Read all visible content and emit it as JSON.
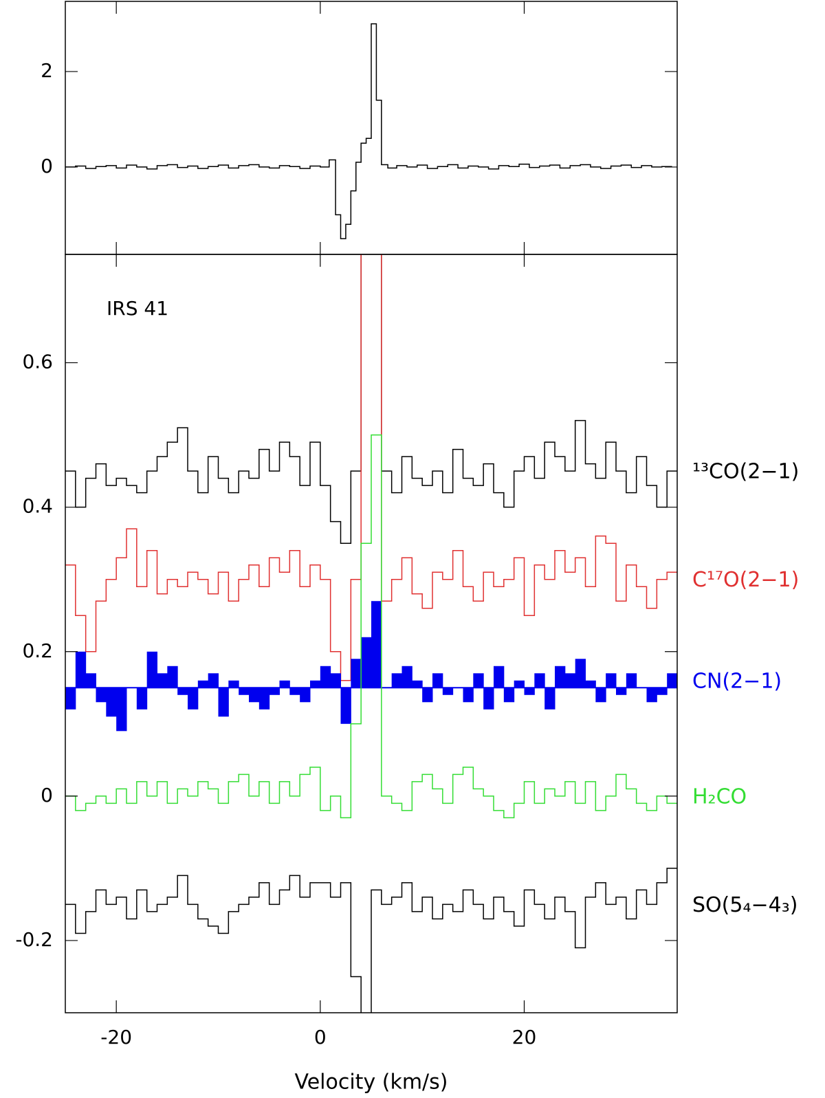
{
  "chart_data": [
    {
      "type": "line",
      "xlim": [
        -25,
        35
      ],
      "ylim": [
        -1.83,
        3.47
      ],
      "xticks": [
        -20,
        0,
        20
      ],
      "yticks": [
        0,
        2
      ],
      "show_xtick_labels": false,
      "x": [
        -24.5,
        -23.5,
        -22.5,
        -21.5,
        -20.5,
        -19.5,
        -18.5,
        -17.5,
        -16.5,
        -15.5,
        -14.5,
        -13.5,
        -12.5,
        -11.5,
        -10.5,
        -9.5,
        -8.5,
        -7.5,
        -6.5,
        -5.5,
        -4.5,
        -3.5,
        -2.5,
        -1.5,
        -0.5,
        0.5,
        1.25,
        1.75,
        2.25,
        2.75,
        3.25,
        3.75,
        4.25,
        4.75,
        5.25,
        5.75,
        6.25,
        7,
        8,
        9,
        10,
        11,
        12,
        13,
        14,
        15,
        16,
        17,
        18,
        19,
        20,
        21,
        22,
        23,
        24,
        25,
        26,
        27,
        28,
        29,
        30,
        31,
        32,
        33,
        34
      ],
      "series": [
        {
          "color": "#000000",
          "values": [
            0.0,
            0.02,
            -0.03,
            0.01,
            0.03,
            -0.02,
            0.04,
            0.0,
            -0.04,
            0.03,
            0.05,
            -0.01,
            0.02,
            -0.03,
            0.01,
            0.04,
            -0.02,
            0.03,
            0.05,
            0.0,
            -0.02,
            0.03,
            0.01,
            -0.03,
            0.02,
            0.0,
            0.15,
            -1.0,
            -1.5,
            -1.2,
            -0.5,
            0.1,
            0.5,
            0.6,
            3.0,
            1.4,
            0.05,
            -0.02,
            0.03,
            0.0,
            0.04,
            -0.03,
            0.01,
            0.05,
            -0.02,
            0.02,
            0.0,
            -0.04,
            0.03,
            0.01,
            0.06,
            -0.01,
            0.02,
            0.04,
            -0.02,
            0.03,
            0.05,
            0.0,
            -0.03,
            0.02,
            0.04,
            -0.01,
            0.03,
            0.0,
            0.01
          ]
        }
      ]
    },
    {
      "type": "line",
      "xlim": [
        -25,
        35
      ],
      "ylim": [
        -0.3,
        0.75
      ],
      "xticks": [
        -20,
        0,
        20
      ],
      "yticks": [
        -0.2,
        0,
        0.2,
        0.4,
        0.6
      ],
      "show_xtick_labels": true,
      "xlabel": "Velocity (km/s)",
      "annotation": "IRS 41",
      "x": [
        -24.5,
        -23.5,
        -22.5,
        -21.5,
        -20.5,
        -19.5,
        -18.5,
        -17.5,
        -16.5,
        -15.5,
        -14.5,
        -13.5,
        -12.5,
        -11.5,
        -10.5,
        -9.5,
        -8.5,
        -7.5,
        -6.5,
        -5.5,
        -4.5,
        -3.5,
        -2.5,
        -1.5,
        -0.5,
        0.5,
        1.5,
        2.5,
        3.5,
        4.5,
        5.5,
        6.5,
        7.5,
        8.5,
        9.5,
        10.5,
        11.5,
        12.5,
        13.5,
        14.5,
        15.5,
        16.5,
        17.5,
        18.5,
        19.5,
        20.5,
        21.5,
        22.5,
        23.5,
        24.5,
        25.5,
        26.5,
        27.5,
        28.5,
        29.5,
        30.5,
        31.5,
        32.5,
        33.5,
        34.5
      ],
      "series": [
        {
          "name": "¹³CO(2−1)",
          "color": "#000000",
          "values": [
            0.45,
            0.4,
            0.44,
            0.46,
            0.43,
            0.44,
            0.43,
            0.42,
            0.45,
            0.47,
            0.49,
            0.51,
            0.45,
            0.42,
            0.47,
            0.44,
            0.42,
            0.45,
            0.44,
            0.48,
            0.45,
            0.49,
            0.47,
            0.43,
            0.49,
            0.43,
            0.38,
            0.35,
            0.45,
            0.95,
            1.2,
            0.45,
            0.42,
            0.47,
            0.44,
            0.43,
            0.45,
            0.42,
            0.48,
            0.44,
            0.43,
            0.46,
            0.42,
            0.4,
            0.45,
            0.47,
            0.44,
            0.49,
            0.47,
            0.45,
            0.52,
            0.46,
            0.44,
            0.49,
            0.45,
            0.42,
            0.47,
            0.43,
            0.4,
            0.45
          ]
        },
        {
          "name": "C¹⁷O(2−1)",
          "color": "#e03030",
          "values": [
            0.32,
            0.25,
            0.2,
            0.27,
            0.3,
            0.33,
            0.37,
            0.29,
            0.34,
            0.28,
            0.3,
            0.29,
            0.31,
            0.3,
            0.28,
            0.31,
            0.27,
            0.3,
            0.32,
            0.29,
            0.33,
            0.31,
            0.34,
            0.29,
            0.32,
            0.3,
            0.2,
            0.16,
            0.3,
            1.0,
            0.9,
            0.27,
            0.3,
            0.33,
            0.28,
            0.26,
            0.31,
            0.3,
            0.34,
            0.29,
            0.27,
            0.31,
            0.29,
            0.3,
            0.33,
            0.25,
            0.32,
            0.3,
            0.34,
            0.31,
            0.33,
            0.29,
            0.36,
            0.35,
            0.27,
            0.32,
            0.29,
            0.26,
            0.3,
            0.31
          ]
        },
        {
          "name": "CN(2−1)",
          "color": "#0000ee",
          "fill": true,
          "baseline": 0.15,
          "values": [
            0.12,
            0.2,
            0.17,
            0.13,
            0.11,
            0.09,
            0.15,
            0.12,
            0.2,
            0.17,
            0.18,
            0.14,
            0.12,
            0.16,
            0.17,
            0.11,
            0.16,
            0.14,
            0.13,
            0.12,
            0.14,
            0.16,
            0.14,
            0.13,
            0.16,
            0.18,
            0.17,
            0.1,
            0.19,
            0.22,
            0.27,
            0.15,
            0.17,
            0.18,
            0.16,
            0.13,
            0.17,
            0.14,
            0.15,
            0.13,
            0.17,
            0.12,
            0.18,
            0.13,
            0.16,
            0.14,
            0.17,
            0.12,
            0.18,
            0.17,
            0.19,
            0.16,
            0.13,
            0.17,
            0.14,
            0.17,
            0.15,
            0.13,
            0.14,
            0.17
          ]
        },
        {
          "name": "H₂CO",
          "color": "#33dd33",
          "values": [
            0.0,
            -0.02,
            -0.01,
            0.0,
            -0.01,
            0.01,
            -0.01,
            0.02,
            0.0,
            0.02,
            -0.01,
            0.01,
            0.0,
            0.02,
            0.01,
            -0.01,
            0.02,
            0.03,
            0.0,
            0.02,
            -0.01,
            0.02,
            0.0,
            0.03,
            0.04,
            -0.02,
            0.0,
            -0.03,
            0.1,
            0.35,
            0.5,
            0.0,
            -0.01,
            -0.02,
            0.02,
            0.03,
            0.01,
            -0.01,
            0.03,
            0.04,
            0.01,
            0.0,
            -0.02,
            -0.03,
            -0.01,
            0.02,
            -0.01,
            0.01,
            0.0,
            0.02,
            -0.01,
            0.02,
            -0.02,
            0.0,
            0.03,
            0.01,
            -0.01,
            -0.02,
            0.0,
            -0.01
          ]
        },
        {
          "name": "SO(5₄−4₃)",
          "color": "#000000",
          "values": [
            -0.15,
            -0.19,
            -0.16,
            -0.13,
            -0.15,
            -0.14,
            -0.17,
            -0.13,
            -0.16,
            -0.15,
            -0.14,
            -0.11,
            -0.15,
            -0.17,
            -0.18,
            -0.19,
            -0.16,
            -0.15,
            -0.14,
            -0.12,
            -0.15,
            -0.13,
            -0.11,
            -0.14,
            -0.12,
            -0.12,
            -0.14,
            -0.12,
            -0.25,
            -0.4,
            -0.13,
            -0.15,
            -0.14,
            -0.12,
            -0.16,
            -0.14,
            -0.17,
            -0.15,
            -0.16,
            -0.13,
            -0.15,
            -0.17,
            -0.14,
            -0.16,
            -0.18,
            -0.13,
            -0.15,
            -0.17,
            -0.14,
            -0.16,
            -0.21,
            -0.14,
            -0.12,
            -0.15,
            -0.14,
            -0.17,
            -0.13,
            -0.15,
            -0.12,
            -0.1
          ]
        }
      ]
    }
  ]
}
